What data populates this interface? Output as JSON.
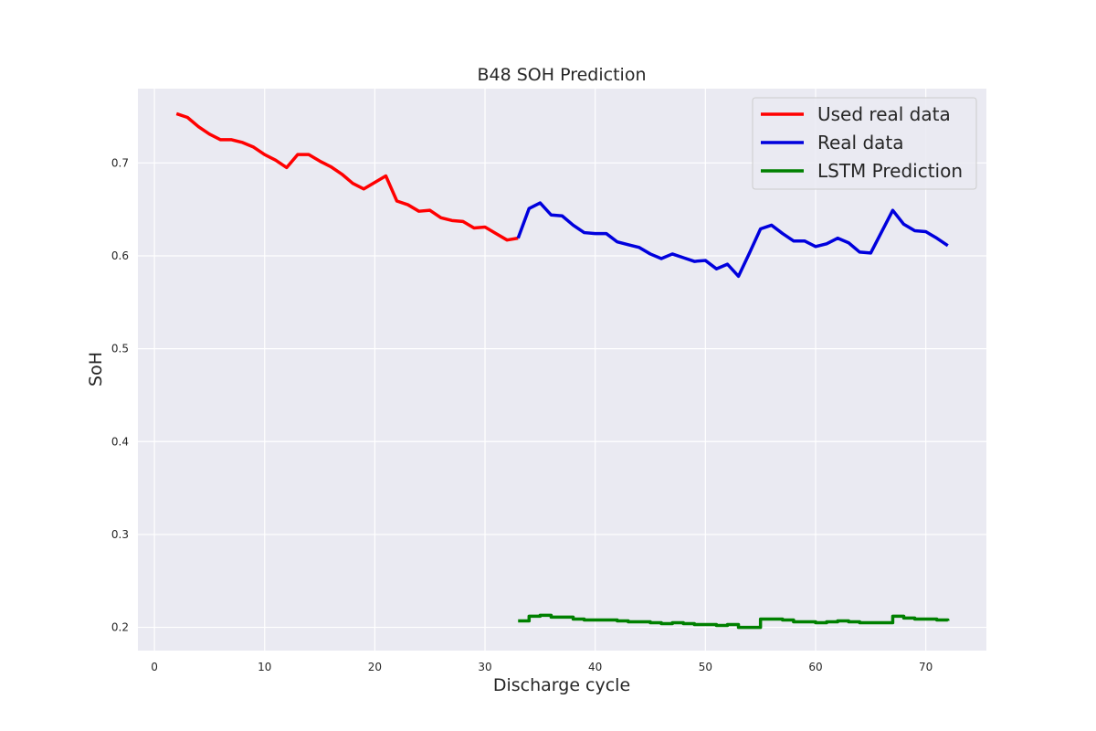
{
  "chart_data": {
    "type": "line",
    "title": "B48 SOH Prediction",
    "xlabel": "Discharge cycle",
    "ylabel": "SoH",
    "xlim": [
      -1.5,
      75.5
    ],
    "ylim": [
      0.175,
      0.78
    ],
    "xticks": [
      0,
      10,
      20,
      30,
      40,
      50,
      60,
      70
    ],
    "yticks": [
      0.2,
      0.3,
      0.4,
      0.5,
      0.6,
      0.7
    ],
    "grid": true,
    "legend_position": "top-right",
    "series": [
      {
        "name": "Used real data",
        "color": "#ff0000",
        "step": false,
        "x": [
          2,
          3,
          4,
          5,
          6,
          7,
          8,
          9,
          10,
          11,
          12,
          13,
          14,
          15,
          16,
          17,
          18,
          19,
          20,
          21,
          22,
          23,
          24,
          25,
          26,
          27,
          28,
          29,
          30,
          31,
          32,
          33
        ],
        "y": [
          0.753,
          0.749,
          0.739,
          0.731,
          0.725,
          0.725,
          0.722,
          0.717,
          0.709,
          0.703,
          0.695,
          0.709,
          0.709,
          0.702,
          0.696,
          0.688,
          0.678,
          0.672,
          0.679,
          0.686,
          0.659,
          0.655,
          0.648,
          0.649,
          0.641,
          0.638,
          0.637,
          0.63,
          0.631,
          0.624,
          0.617,
          0.619
        ]
      },
      {
        "name": "Real data",
        "color": "#0000dd",
        "step": false,
        "x": [
          33,
          34,
          35,
          36,
          37,
          38,
          39,
          40,
          41,
          42,
          43,
          44,
          45,
          46,
          47,
          48,
          49,
          50,
          51,
          52,
          53,
          54,
          55,
          56,
          57,
          58,
          59,
          60,
          61,
          62,
          63,
          64,
          65,
          66,
          67,
          68,
          69,
          70,
          71,
          72
        ],
        "y": [
          0.619,
          0.651,
          0.657,
          0.644,
          0.643,
          0.633,
          0.625,
          0.624,
          0.624,
          0.615,
          0.612,
          0.609,
          0.602,
          0.597,
          0.602,
          0.598,
          0.594,
          0.595,
          0.586,
          0.591,
          0.578,
          0.603,
          0.629,
          0.633,
          0.624,
          0.616,
          0.616,
          0.61,
          0.613,
          0.619,
          0.614,
          0.604,
          0.603,
          0.626,
          0.649,
          0.634,
          0.627,
          0.626,
          0.619,
          0.611
        ]
      },
      {
        "name": "LSTM Prediction",
        "color": "#008000",
        "step": true,
        "x": [
          33,
          34,
          35,
          36,
          37,
          38,
          39,
          40,
          41,
          42,
          43,
          44,
          45,
          46,
          47,
          48,
          49,
          50,
          51,
          52,
          53,
          54,
          55,
          56,
          57,
          58,
          59,
          60,
          61,
          62,
          63,
          64,
          65,
          66,
          67,
          68,
          69,
          70,
          71,
          72
        ],
        "y": [
          0.207,
          0.212,
          0.213,
          0.211,
          0.211,
          0.209,
          0.208,
          0.208,
          0.208,
          0.207,
          0.206,
          0.206,
          0.205,
          0.204,
          0.205,
          0.204,
          0.203,
          0.203,
          0.202,
          0.203,
          0.2,
          0.2,
          0.209,
          0.209,
          0.208,
          0.206,
          0.206,
          0.205,
          0.206,
          0.207,
          0.206,
          0.205,
          0.205,
          0.205,
          0.212,
          0.21,
          0.209,
          0.209,
          0.208,
          0.207
        ]
      }
    ]
  }
}
